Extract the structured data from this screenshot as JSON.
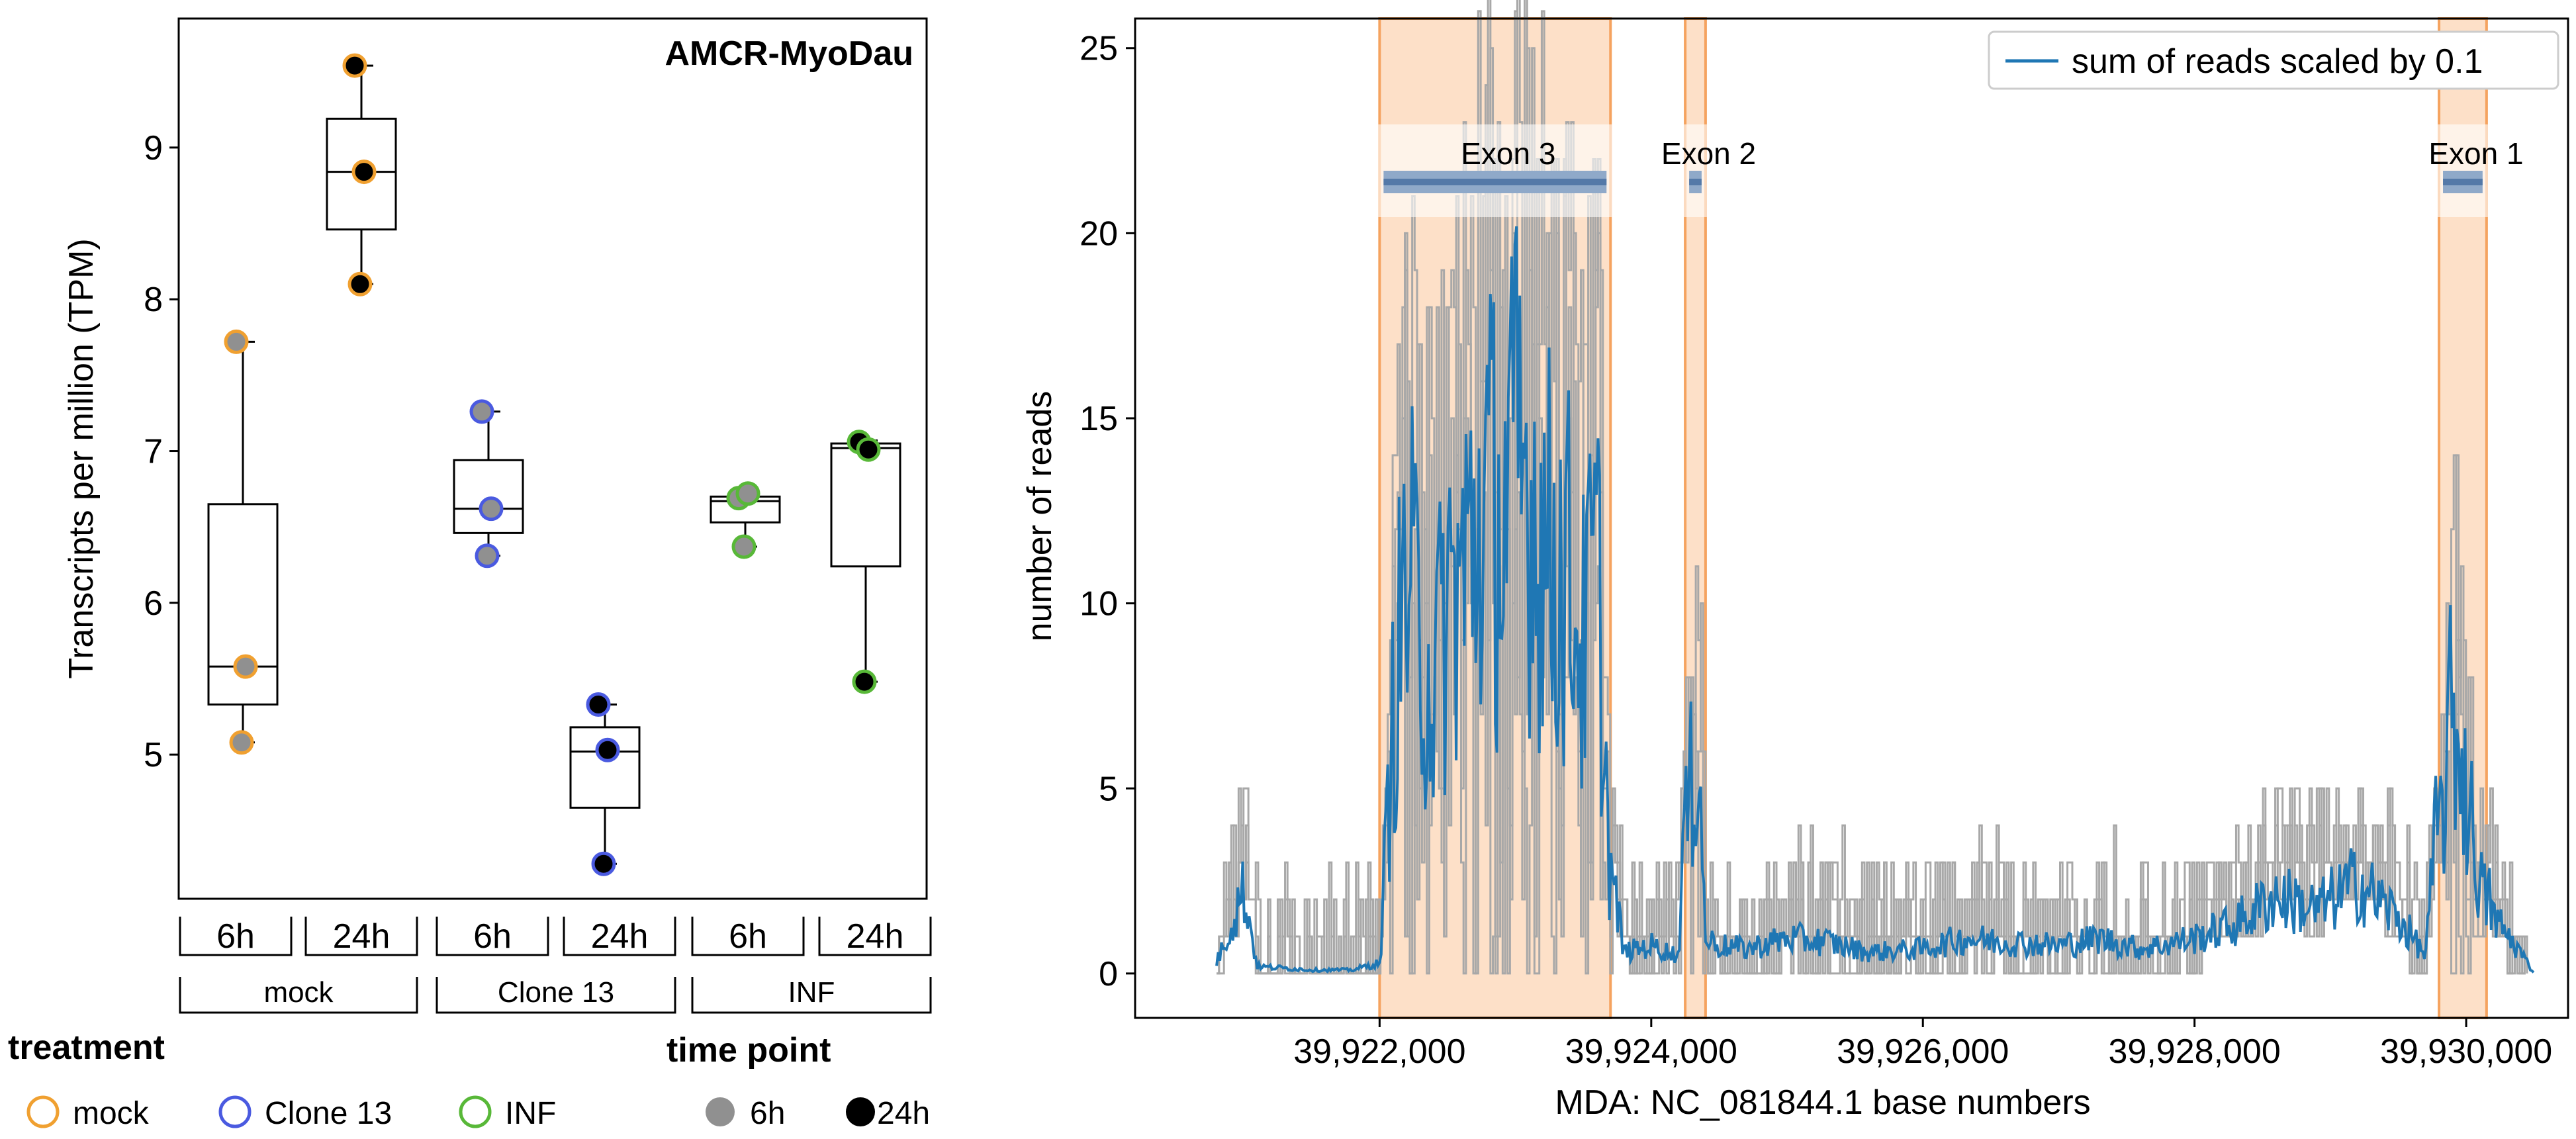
{
  "chart_data": [
    {
      "type": "box",
      "title": "AMCR-MyoDau",
      "ylabel": "Transcripts per million (TPM)",
      "ylim": [
        4.05,
        9.85
      ],
      "yticks": [
        5,
        6,
        7,
        8,
        9
      ],
      "colors": {
        "mock": "#f0a030",
        "Clone 13": "#4a5ae0",
        "INF": "#58b838",
        "6h": "#909090",
        "24h": "#000000"
      },
      "groups": [
        {
          "treatment": "mock",
          "time": "6h",
          "q1": 5.33,
          "median": 5.58,
          "q3": 6.65,
          "whisker_low": 5.08,
          "whisker_high": 7.72,
          "points": [
            7.72,
            5.58,
            5.08
          ]
        },
        {
          "treatment": "mock",
          "time": "24h",
          "q1": 8.46,
          "median": 8.84,
          "q3": 9.19,
          "whisker_low": 8.1,
          "whisker_high": 9.54,
          "points": [
            9.54,
            8.84,
            8.1
          ]
        },
        {
          "treatment": "Clone 13",
          "time": "6h",
          "q1": 6.46,
          "median": 6.62,
          "q3": 6.94,
          "whisker_low": 6.31,
          "whisker_high": 7.26,
          "points": [
            7.26,
            6.62,
            6.31
          ]
        },
        {
          "treatment": "Clone 13",
          "time": "24h",
          "q1": 4.65,
          "median": 5.02,
          "q3": 5.18,
          "whisker_low": 4.28,
          "whisker_high": 5.33,
          "points": [
            5.33,
            5.03,
            4.28
          ]
        },
        {
          "treatment": "INF",
          "time": "6h",
          "q1": 6.53,
          "median": 6.67,
          "q3": 6.7,
          "whisker_low": 6.37,
          "whisker_high": 6.72,
          "points": [
            6.69,
            6.72,
            6.37
          ]
        },
        {
          "treatment": "INF",
          "time": "24h",
          "q1": 6.24,
          "median": 7.02,
          "q3": 7.05,
          "whisker_low": 5.48,
          "whisker_high": 7.07,
          "points": [
            7.06,
            7.01,
            5.48
          ]
        }
      ],
      "treatment_labels": [
        "mock",
        "Clone 13",
        "INF"
      ],
      "time_labels": [
        "6h",
        "24h"
      ],
      "legend": {
        "treatment_title": "treatment",
        "treatment_items": [
          "mock",
          "Clone 13",
          "INF"
        ],
        "time_title": "time point",
        "time_items": [
          "6h",
          "24h"
        ]
      }
    },
    {
      "type": "line",
      "xlabel": "MDA: NC_081844.1 base numbers",
      "ylabel": "number of reads",
      "xlim": [
        39920200,
        39930750
      ],
      "ylim": [
        -1.2,
        25.8
      ],
      "xticks": [
        39922000,
        39924000,
        39926000,
        39928000,
        39930000
      ],
      "xtick_labels": [
        "39,922,000",
        "39,924,000",
        "39,926,000",
        "39,928,000",
        "39,930,000"
      ],
      "yticks": [
        0,
        5,
        10,
        15,
        20,
        25
      ],
      "legend": {
        "label": "sum of reads scaled by 0.1",
        "position": "top-right"
      },
      "exons": [
        {
          "label": "Exon 3",
          "start": 39922000,
          "end": 39923700
        },
        {
          "label": "Exon 2",
          "start": 39924250,
          "end": 39924400
        },
        {
          "label": "Exon 1",
          "start": 39929800,
          "end": 39930150
        }
      ],
      "read_profile_x": [
        39920800,
        39921000,
        39921100,
        39921500,
        39921800,
        39922000,
        39922100,
        39922200,
        39922300,
        39922400,
        39922500,
        39922600,
        39922700,
        39922800,
        39922900,
        39923000,
        39923100,
        39923200,
        39923300,
        39923400,
        39923500,
        39923600,
        39923700,
        39923800,
        39924000,
        39924200,
        39924250,
        39924300,
        39924350,
        39924400,
        39924500,
        39924700,
        39925000,
        39925300,
        39925600,
        39926000,
        39926300,
        39926600,
        39927000,
        39927300,
        39927600,
        39928000,
        39928300,
        39928600,
        39928900,
        39929200,
        39929500,
        39929700,
        39929800,
        39929900,
        39930000,
        39930100,
        39930200,
        39930400,
        39930500
      ],
      "read_profile_y": [
        0.3,
        2.4,
        0.2,
        0.1,
        0.1,
        0.3,
        9.5,
        15.1,
        12.4,
        10.6,
        13.8,
        14.6,
        16.3,
        17.9,
        16.4,
        19.0,
        18.0,
        16.2,
        15.1,
        14.7,
        12.0,
        15.6,
        3.0,
        0.6,
        0.8,
        0.5,
        5.0,
        7.0,
        8.9,
        1.0,
        0.8,
        0.7,
        1.0,
        0.9,
        0.6,
        0.7,
        1.0,
        0.9,
        0.8,
        1.0,
        0.7,
        1.0,
        1.4,
        2.2,
        1.8,
        2.6,
        1.6,
        0.5,
        5.0,
        9.9,
        6.8,
        3.5,
        1.6,
        0.6,
        0.0
      ]
    }
  ]
}
